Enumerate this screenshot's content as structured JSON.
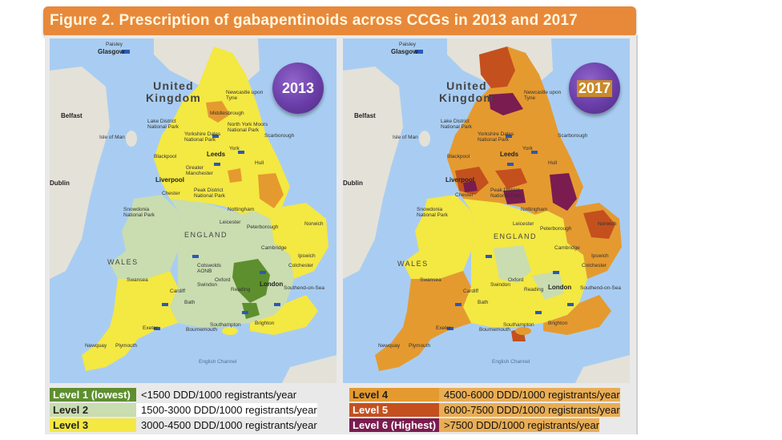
{
  "title": "Figure 2. Prescription of gabapentinoids across CCGs in 2013 and 2017",
  "maps": [
    {
      "year": "2013",
      "country_label": [
        "United",
        "Kingdom"
      ],
      "region_labels": [
        "ENGLAND",
        "WALES"
      ],
      "places": [
        "Paisley",
        "Glasgow",
        "Belfast",
        "Isle of Man",
        "Dublin",
        "Newcastle upon Tyne",
        "Middlesbrough",
        "Lake District National Park",
        "North York Moors National Park",
        "Yorkshire Dales National Park",
        "Scarborough",
        "Blackpool",
        "Leeds",
        "York",
        "Hull",
        "Liverpool",
        "Greater Manchester",
        "Chester",
        "Peak District National Park",
        "Snowdonia National Park",
        "Nottingham",
        "Leicester",
        "Peterborough",
        "Norwich",
        "Cambridge",
        "Ipswich",
        "Colchester",
        "Cotswolds AONB",
        "Oxford",
        "Swindon",
        "Reading",
        "London",
        "Southend-on-Sea",
        "Cardiff",
        "Swansea",
        "Bath",
        "Exeter",
        "Plymouth",
        "Southampton",
        "Bournemouth",
        "Brighton",
        "English Channel",
        "Newquay"
      ]
    },
    {
      "year": "2017",
      "country_label": [
        "United",
        "Kingdom"
      ],
      "region_labels": [
        "ENGLAND",
        "WALES"
      ],
      "places": [
        "Paisley",
        "Glasgow",
        "Belfast",
        "Isle of Man",
        "Dublin",
        "Newcastle upon Tyne",
        "Lake District National Park",
        "Yorkshire Dales National Park",
        "Scarborough",
        "Blackpool",
        "Leeds",
        "York",
        "Hull",
        "Liverpool",
        "Chester",
        "Peak District National Park",
        "Snowdonia National Park",
        "Nottingham",
        "Leicester",
        "Peterborough",
        "Norwich",
        "Cambridge",
        "Ipswich",
        "Colchester",
        "Oxford",
        "Swindon",
        "Reading",
        "London",
        "Southend-on-Sea",
        "Cardiff",
        "Swansea",
        "Bath",
        "Exeter",
        "Plymouth",
        "Southampton",
        "Bournemouth",
        "Brighton",
        "English Channel",
        "Newquay"
      ]
    }
  ],
  "legend": [
    {
      "level": "Level 1 (lowest)",
      "range": "<1500 DDD/1000 registrants/year",
      "color": "#5e8f2e"
    },
    {
      "level": "Level 2",
      "range": "1500-3000 DDD/1000 registrants/year",
      "color": "#c9ddb0"
    },
    {
      "level": "Level 3",
      "range": "3000-4500 DDD/1000 registrants/year",
      "color": "#f4e842"
    },
    {
      "level": "Level 4",
      "range": "4500-6000 DDD/1000 registrants/year",
      "color": "#e59a2f"
    },
    {
      "level": "Level 5",
      "range": "6000-7500 DDD/1000 registrants/year",
      "color": "#c4501e"
    },
    {
      "level": "Level 6 (Highest)",
      "range": ">7500 DDD/1000 registrants/year",
      "color": "#7a1c4f"
    }
  ],
  "colors": {
    "title_bar": "#e8893a",
    "sea": "#a9cdf2",
    "land_other": "#e4e1d8",
    "badge": "#6a3ea8"
  }
}
